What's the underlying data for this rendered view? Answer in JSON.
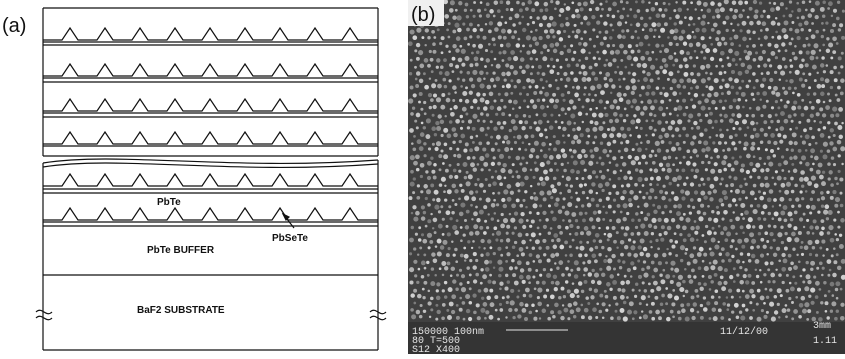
{
  "panel_a": {
    "label": "(a)",
    "layer_labels": {
      "pbte": "PbTe",
      "pbsete": "PbSeTe",
      "buffer": "PbTe BUFFER",
      "substrate": "BaF2 SUBSTRATE"
    },
    "visible_superlattice_periods": 6
  },
  "panel_b": {
    "label": "(b)",
    "info_line_1": "150000 100nm",
    "info_line_2": "80 T=500",
    "info_line_3": "S12 X400",
    "date": "11/12/00",
    "right_value_top": "3mm",
    "right_value_bottom": "1.11",
    "colors": {
      "background": "#404040",
      "dots": "#dcdcdc"
    }
  }
}
